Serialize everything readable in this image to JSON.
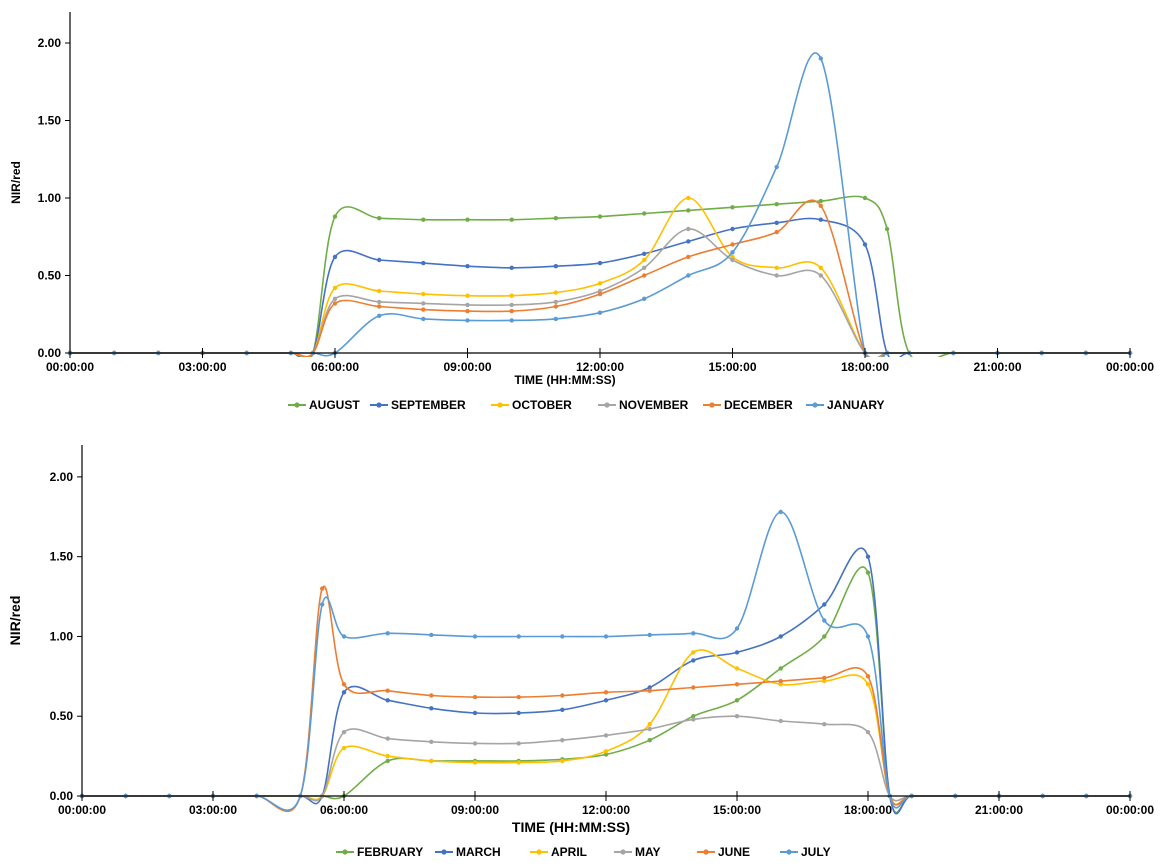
{
  "chart_data": [
    {
      "type": "line",
      "title": "",
      "xlabel": "TIME (HH:MM:SS)",
      "ylabel": "NIR/red",
      "xlim": [
        0,
        24
      ],
      "ylim": [
        0,
        2.2
      ],
      "x_ticks": [
        0,
        3,
        6,
        9,
        12,
        15,
        18,
        21,
        24
      ],
      "x_tick_labels": [
        "00:00:00",
        "03:00:00",
        "06:00:00",
        "09:00:00",
        "12:00:00",
        "15:00:00",
        "18:00:00",
        "21:00:00",
        "00:00:00"
      ],
      "y_ticks": [
        0,
        0.5,
        1,
        1.5,
        2
      ],
      "y_tick_labels": [
        "0.00",
        "0.50",
        "1.00",
        "1.50",
        "2.00"
      ],
      "grid": false,
      "legend_position": "bottom",
      "series": [
        {
          "name": "AUGUST",
          "color": "#70AD47",
          "x": [
            0,
            1,
            2,
            3,
            4,
            5,
            5.5,
            6,
            7,
            8,
            9,
            10,
            11,
            12,
            13,
            14,
            15,
            16,
            17,
            18,
            18.5,
            19,
            20,
            21,
            22,
            23,
            24
          ],
          "y": [
            0,
            0,
            0,
            0,
            0,
            0,
            0,
            0.88,
            0.87,
            0.86,
            0.86,
            0.86,
            0.87,
            0.88,
            0.9,
            0.92,
            0.94,
            0.96,
            0.98,
            1.0,
            0.8,
            0,
            0,
            0,
            0,
            0,
            0
          ]
        },
        {
          "name": "SEPTEMBER",
          "color": "#4472C4",
          "x": [
            0,
            1,
            2,
            3,
            4,
            5,
            5.5,
            6,
            7,
            8,
            9,
            10,
            11,
            12,
            13,
            14,
            15,
            16,
            17,
            18,
            18.5,
            19,
            20,
            21,
            22,
            23,
            24
          ],
          "y": [
            0,
            0,
            0,
            0,
            0,
            0,
            0,
            0.62,
            0.6,
            0.58,
            0.56,
            0.55,
            0.56,
            0.58,
            0.64,
            0.72,
            0.8,
            0.84,
            0.86,
            0.7,
            0,
            0,
            0,
            0,
            0,
            0,
            0
          ]
        },
        {
          "name": "OCTOBER",
          "color": "#FFC000",
          "x": [
            0,
            1,
            2,
            3,
            4,
            5,
            5.5,
            6,
            7,
            8,
            9,
            10,
            11,
            12,
            13,
            14,
            15,
            16,
            17,
            18,
            18.5,
            19,
            20,
            21,
            22,
            23,
            24
          ],
          "y": [
            0,
            0,
            0,
            0,
            0,
            0,
            0,
            0.42,
            0.4,
            0.38,
            0.37,
            0.37,
            0.39,
            0.45,
            0.6,
            1.0,
            0.62,
            0.55,
            0.55,
            0,
            0,
            0,
            0,
            0,
            0,
            0,
            0
          ]
        },
        {
          "name": "NOVEMBER",
          "color": "#A5A5A5",
          "x": [
            0,
            1,
            2,
            3,
            4,
            5,
            5.5,
            6,
            7,
            8,
            9,
            10,
            11,
            12,
            13,
            14,
            15,
            16,
            17,
            18,
            18.5,
            19,
            20,
            21,
            22,
            23,
            24
          ],
          "y": [
            0,
            0,
            0,
            0,
            0,
            0,
            0,
            0.35,
            0.33,
            0.32,
            0.31,
            0.31,
            0.33,
            0.4,
            0.55,
            0.8,
            0.6,
            0.5,
            0.5,
            0,
            0,
            0,
            0,
            0,
            0,
            0,
            0
          ]
        },
        {
          "name": "DECEMBER",
          "color": "#ED7D31",
          "x": [
            0,
            1,
            2,
            3,
            4,
            5,
            5.5,
            6,
            7,
            8,
            9,
            10,
            11,
            12,
            13,
            14,
            15,
            16,
            17,
            18,
            18.5,
            19,
            20,
            21,
            22,
            23,
            24
          ],
          "y": [
            0,
            0,
            0,
            0,
            0,
            0,
            0,
            0.32,
            0.3,
            0.28,
            0.27,
            0.27,
            0.3,
            0.38,
            0.5,
            0.62,
            0.7,
            0.78,
            0.95,
            0,
            0,
            0,
            0,
            0,
            0,
            0,
            0
          ]
        },
        {
          "name": "JANUARY",
          "color": "#5B9BD5",
          "x": [
            0,
            1,
            2,
            3,
            4,
            5,
            5.5,
            6,
            7,
            8,
            9,
            10,
            11,
            12,
            13,
            14,
            15,
            16,
            17,
            18,
            18.5,
            19,
            20,
            21,
            22,
            23,
            24
          ],
          "y": [
            0,
            0,
            0,
            0,
            0,
            0,
            0,
            0,
            0.24,
            0.22,
            0.21,
            0.21,
            0.22,
            0.26,
            0.35,
            0.5,
            0.65,
            1.2,
            1.9,
            0,
            0,
            0,
            0,
            0,
            0,
            0,
            0
          ]
        }
      ]
    },
    {
      "type": "line",
      "title": "",
      "xlabel": "TIME (HH:MM:SS)",
      "ylabel": "NIR/red",
      "xlim": [
        0,
        24
      ],
      "ylim": [
        0,
        2.2
      ],
      "x_ticks": [
        0,
        3,
        6,
        9,
        12,
        15,
        18,
        21,
        24
      ],
      "x_tick_labels": [
        "00:00:00",
        "03:00:00",
        "06:00:00",
        "09:00:00",
        "12:00:00",
        "15:00:00",
        "18:00:00",
        "21:00:00",
        "00:00:00"
      ],
      "y_ticks": [
        0,
        0.5,
        1,
        1.5,
        2
      ],
      "y_tick_labels": [
        "0.00",
        "0.50",
        "1.00",
        "1.50",
        "2.00"
      ],
      "grid": false,
      "legend_position": "bottom",
      "series": [
        {
          "name": "FEBRUARY",
          "color": "#70AD47",
          "x": [
            0,
            1,
            2,
            3,
            4,
            5,
            5.5,
            6,
            7,
            8,
            9,
            10,
            11,
            12,
            13,
            14,
            15,
            16,
            17,
            18,
            18.5,
            19,
            20,
            21,
            22,
            23,
            24
          ],
          "y": [
            0,
            0,
            0,
            0,
            0,
            0,
            0,
            0,
            0.22,
            0.22,
            0.22,
            0.22,
            0.23,
            0.26,
            0.35,
            0.5,
            0.6,
            0.8,
            1.0,
            1.4,
            0,
            0,
            0,
            0,
            0,
            0,
            0
          ]
        },
        {
          "name": "MARCH",
          "color": "#4472C4",
          "x": [
            0,
            1,
            2,
            3,
            4,
            5,
            5.5,
            6,
            7,
            8,
            9,
            10,
            11,
            12,
            13,
            14,
            15,
            16,
            17,
            18,
            18.5,
            19,
            20,
            21,
            22,
            23,
            24
          ],
          "y": [
            0,
            0,
            0,
            0,
            0,
            0,
            0,
            0.65,
            0.6,
            0.55,
            0.52,
            0.52,
            0.54,
            0.6,
            0.68,
            0.85,
            0.9,
            1.0,
            1.2,
            1.5,
            0,
            0,
            0,
            0,
            0,
            0,
            0
          ]
        },
        {
          "name": "APRIL",
          "color": "#FFC000",
          "x": [
            0,
            1,
            2,
            3,
            4,
            5,
            5.5,
            6,
            7,
            8,
            9,
            10,
            11,
            12,
            13,
            14,
            15,
            16,
            17,
            18,
            18.5,
            19,
            20,
            21,
            22,
            23,
            24
          ],
          "y": [
            0,
            0,
            0,
            0,
            0,
            0,
            0,
            0.3,
            0.25,
            0.22,
            0.21,
            0.21,
            0.22,
            0.28,
            0.45,
            0.9,
            0.8,
            0.7,
            0.72,
            0.7,
            0,
            0,
            0,
            0,
            0,
            0,
            0
          ]
        },
        {
          "name": "MAY",
          "color": "#A5A5A5",
          "x": [
            0,
            1,
            2,
            3,
            4,
            5,
            5.5,
            6,
            7,
            8,
            9,
            10,
            11,
            12,
            13,
            14,
            15,
            16,
            17,
            18,
            18.5,
            19,
            20,
            21,
            22,
            23,
            24
          ],
          "y": [
            0,
            0,
            0,
            0,
            0,
            0,
            0,
            0.4,
            0.36,
            0.34,
            0.33,
            0.33,
            0.35,
            0.38,
            0.42,
            0.48,
            0.5,
            0.47,
            0.45,
            0.4,
            0,
            0,
            0,
            0,
            0,
            0,
            0
          ]
        },
        {
          "name": "JUNE",
          "color": "#ED7D31",
          "x": [
            0,
            1,
            2,
            3,
            4,
            5,
            5.5,
            6,
            7,
            8,
            9,
            10,
            11,
            12,
            13,
            14,
            15,
            16,
            17,
            18,
            18.5,
            19,
            20,
            21,
            22,
            23,
            24
          ],
          "y": [
            0,
            0,
            0,
            0,
            0,
            0,
            1.3,
            0.7,
            0.66,
            0.63,
            0.62,
            0.62,
            0.63,
            0.65,
            0.66,
            0.68,
            0.7,
            0.72,
            0.74,
            0.75,
            0,
            0,
            0,
            0,
            0,
            0,
            0
          ]
        },
        {
          "name": "JULY",
          "color": "#5B9BD5",
          "x": [
            0,
            1,
            2,
            3,
            4,
            5,
            5.5,
            6,
            7,
            8,
            9,
            10,
            11,
            12,
            13,
            14,
            15,
            16,
            17,
            18,
            18.5,
            19,
            20,
            21,
            22,
            23,
            24
          ],
          "y": [
            0,
            0,
            0,
            0,
            0,
            0,
            1.2,
            1.0,
            1.02,
            1.01,
            1.0,
            1.0,
            1.0,
            1.0,
            1.01,
            1.02,
            1.05,
            1.78,
            1.1,
            1.0,
            0,
            0,
            0,
            0,
            0,
            0,
            0
          ]
        }
      ]
    }
  ]
}
